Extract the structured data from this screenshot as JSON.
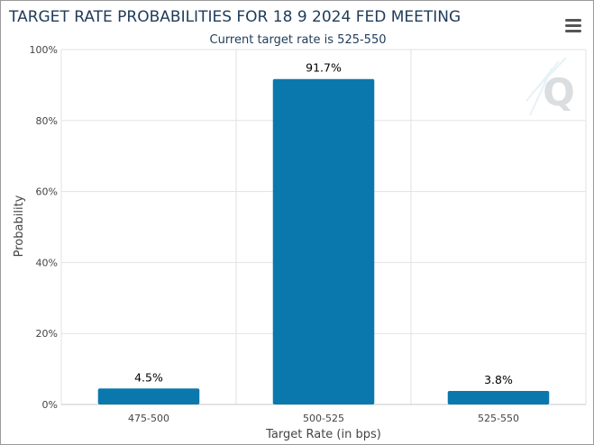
{
  "chart_data": {
    "type": "bar",
    "title": "TARGET RATE PROBABILITIES FOR 18 9 2024 FED MEETING",
    "subtitle": "Current target rate is 525-550",
    "xlabel": "Target Rate (in bps)",
    "ylabel": "Probability",
    "categories": [
      "475-500",
      "500-525",
      "525-550"
    ],
    "values": [
      4.5,
      91.7,
      3.8
    ],
    "data_labels": [
      "4.5%",
      "91.7%",
      "3.8%"
    ],
    "ylim": [
      0,
      100
    ],
    "yticks": [
      "0%",
      "20%",
      "40%",
      "60%",
      "80%",
      "100%"
    ],
    "ytick_values": [
      0,
      20,
      40,
      60,
      80,
      100
    ],
    "bar_color": "#0b78ad",
    "grid": true,
    "legend": "none"
  },
  "ui": {
    "menu_icon": "hamburger-menu-icon",
    "watermark_icon": "cme-q-logo"
  }
}
